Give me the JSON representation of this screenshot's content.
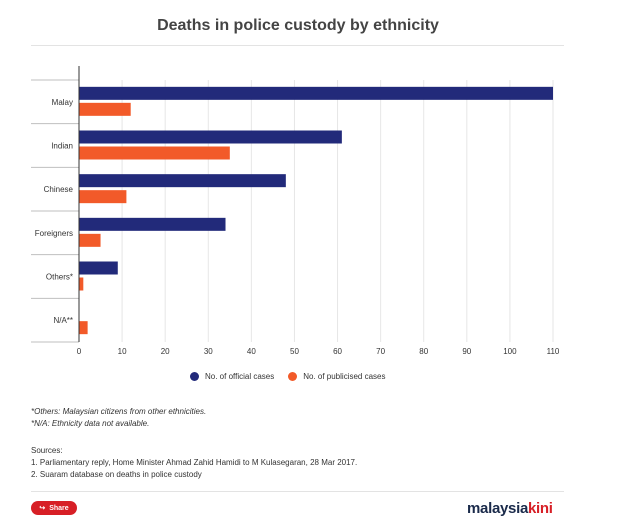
{
  "colors": {
    "official": "#222a7a",
    "publicised": "#f25a29",
    "share": "#d71f26"
  },
  "chart_data": {
    "type": "bar",
    "orientation": "horizontal",
    "title": "Deaths in police custody by ethnicity",
    "categories": [
      "Malay",
      "Indian",
      "Chinese",
      "Foreigners",
      "Others*",
      "N/A**"
    ],
    "series": [
      {
        "name": "No. of official cases",
        "values": [
          110,
          61,
          48,
          34,
          9,
          0
        ]
      },
      {
        "name": "No. of publicised cases",
        "values": [
          12,
          35,
          11,
          5,
          1,
          2
        ]
      }
    ],
    "xlim": [
      0,
      110
    ],
    "xticks": [
      0,
      10,
      20,
      30,
      40,
      50,
      60,
      70,
      80,
      90,
      100,
      110
    ],
    "grid": true,
    "legend": "bottom"
  },
  "notes": {
    "others": "*Others: Malaysian citizens from other ethnicities.",
    "na": "*N/A: Ethnicity data not available."
  },
  "sources": {
    "heading": "Sources:",
    "line1": "1. Parliamentary reply, Home Minister Ahmad Zahid Hamidi to M Kulasegaran, 28 Mar 2017.",
    "line2": "2. Suaram database on deaths in police custody"
  },
  "share": {
    "label": "Share",
    "icon": "share-icon"
  },
  "logo": {
    "part1": "malaysia",
    "part2": "kini"
  }
}
